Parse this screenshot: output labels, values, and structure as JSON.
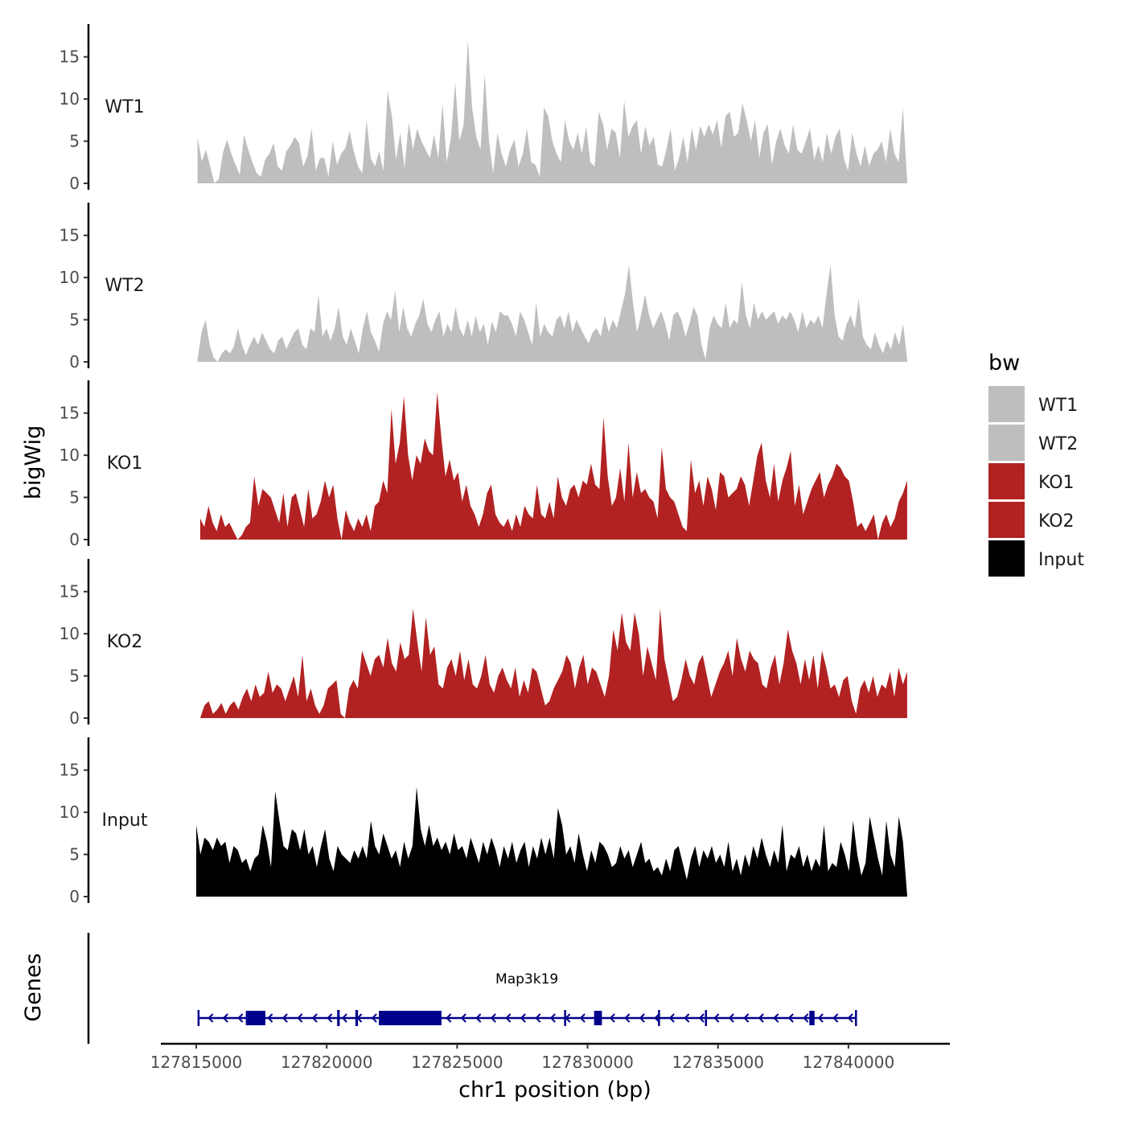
{
  "chart_data": {
    "type": "area",
    "region": "chr1",
    "xlim": [
      127815000,
      127842500
    ],
    "x_ticks": [
      127815000,
      127820000,
      127825000,
      127830000,
      127835000,
      127840000
    ],
    "x_tick_labels": [
      "127815000",
      "127820000",
      "127825000",
      "127830000",
      "127835000",
      "127840000"
    ],
    "xlabel": "chr1 position (bp)",
    "ylabel": "bigWig",
    "ylim": [
      0,
      18.5
    ],
    "y_ticks": [
      0,
      5,
      10,
      15
    ],
    "y_tick_labels": [
      "0",
      "5",
      "10",
      "15"
    ],
    "legend_title": "bw",
    "tracks": [
      {
        "name": "WT1",
        "color": "#bebebe",
        "start": 127815050,
        "end": 127842250,
        "values": [
          5.5,
          2.6,
          4.0,
          2.0,
          0.0,
          0.5,
          3.6,
          5.2,
          3.5,
          2.2,
          1.0,
          5.8,
          4.0,
          2.5,
          1.2,
          0.8,
          2.8,
          3.5,
          4.8,
          2.0,
          1.5,
          3.8,
          4.5,
          5.5,
          4.8,
          2.0,
          3.2,
          6.5,
          1.5,
          3.0,
          3.0,
          0.8,
          5.0,
          2.2,
          3.5,
          4.2,
          6.2,
          3.8,
          2.0,
          1.2,
          7.5,
          3.0,
          2.0,
          3.8,
          1.5,
          11.0,
          8.0,
          2.8,
          6.0,
          1.8,
          7.2,
          4.0,
          6.5,
          5.0,
          4.0,
          3.0,
          5.8,
          3.0,
          9.5,
          2.5,
          5.5,
          12.0,
          5.0,
          7.0,
          17.0,
          9.0,
          5.5,
          4.0,
          13.0,
          5.0,
          1.2,
          6.0,
          3.5,
          2.0,
          4.0,
          5.2,
          2.0,
          3.5,
          6.5,
          2.5,
          2.2,
          0.8,
          9.0,
          8.0,
          5.0,
          3.5,
          2.5,
          7.5,
          5.0,
          4.0,
          6.0,
          3.5,
          6.8,
          2.5,
          2.0,
          8.5,
          7.0,
          4.0,
          6.5,
          6.0,
          3.0,
          9.8,
          5.5,
          6.8,
          7.5,
          3.5,
          6.8,
          4.5,
          5.5,
          2.2,
          2.0,
          4.0,
          6.5,
          1.5,
          3.0,
          5.5,
          2.5,
          6.5,
          4.0,
          6.8,
          5.5,
          7.0,
          5.8,
          7.5,
          4.2,
          8.0,
          8.5,
          5.5,
          6.0,
          9.5,
          7.5,
          5.0,
          7.5,
          3.0,
          6.0,
          7.0,
          2.2,
          5.0,
          6.5,
          4.5,
          3.5,
          7.0,
          4.0,
          3.5,
          5.0,
          6.5,
          2.8,
          4.5,
          2.5,
          6.0,
          3.5,
          5.5,
          6.5,
          3.0,
          1.5,
          6.0,
          3.5,
          2.0,
          4.5,
          2.0,
          3.5,
          4.0,
          5.0,
          2.5,
          6.5,
          3.5,
          2.5,
          9.0,
          0.2
        ]
      },
      {
        "name": "WT2",
        "color": "#bebebe",
        "start": 127815050,
        "end": 127842250,
        "values": [
          0.3,
          3.5,
          5.0,
          2.0,
          0.5,
          0.0,
          1.0,
          1.5,
          1.0,
          1.8,
          4.0,
          2.0,
          0.8,
          2.0,
          3.0,
          2.0,
          3.5,
          2.5,
          1.5,
          1.0,
          2.5,
          3.0,
          1.5,
          2.5,
          3.5,
          4.0,
          2.0,
          1.5,
          4.0,
          3.5,
          8.0,
          3.0,
          4.0,
          2.5,
          4.0,
          6.5,
          3.0,
          2.0,
          4.0,
          2.5,
          1.0,
          4.0,
          6.0,
          3.5,
          2.5,
          1.2,
          4.5,
          6.0,
          5.0,
          8.5,
          3.5,
          6.5,
          4.0,
          3.0,
          4.5,
          5.5,
          7.5,
          4.5,
          3.5,
          5.0,
          6.0,
          3.0,
          4.5,
          3.5,
          6.5,
          4.0,
          3.0,
          5.0,
          3.0,
          5.5,
          3.5,
          4.5,
          2.0,
          4.8,
          3.5,
          6.0,
          5.5,
          5.5,
          4.5,
          3.0,
          6.0,
          5.0,
          3.5,
          2.0,
          7.0,
          3.0,
          4.5,
          3.5,
          3.0,
          5.0,
          5.5,
          4.0,
          6.0,
          3.5,
          5.0,
          4.0,
          3.0,
          2.2,
          3.5,
          4.0,
          3.0,
          5.5,
          3.5,
          5.0,
          4.0,
          6.0,
          8.0,
          11.5,
          7.0,
          3.5,
          5.5,
          8.0,
          5.5,
          4.0,
          5.0,
          6.0,
          4.5,
          2.5,
          5.5,
          6.0,
          5.0,
          3.0,
          4.5,
          6.5,
          5.5,
          2.0,
          0.3,
          4.0,
          5.5,
          4.5,
          4.0,
          7.0,
          4.0,
          5.0,
          4.5,
          9.5,
          5.5,
          4.0,
          7.0,
          5.0,
          6.0,
          5.0,
          5.5,
          6.0,
          4.5,
          5.5,
          5.0,
          6.0,
          5.0,
          3.5,
          6.0,
          4.0,
          5.0,
          4.5,
          5.5,
          4.0,
          8.0,
          11.5,
          5.5,
          3.0,
          2.5,
          4.5,
          5.5,
          4.0,
          7.5,
          3.0,
          2.0,
          1.5,
          3.5,
          2.0,
          1.0,
          2.5,
          1.5,
          3.5,
          2.0,
          4.5,
          0.3
        ]
      },
      {
        "name": "KO1",
        "color": "#b22222",
        "start": 127815150,
        "end": 127842250,
        "values": [
          2.5,
          1.5,
          4.0,
          2.0,
          1.0,
          3.0,
          1.5,
          2.0,
          1.0,
          0.0,
          0.5,
          1.5,
          2.0,
          7.5,
          4.0,
          6.0,
          5.5,
          5.0,
          3.5,
          2.0,
          5.5,
          1.5,
          5.0,
          5.5,
          3.5,
          1.5,
          6.0,
          2.5,
          3.0,
          4.5,
          7.0,
          5.0,
          6.5,
          2.5,
          0.0,
          3.5,
          2.0,
          1.0,
          2.5,
          1.5,
          3.0,
          1.0,
          4.0,
          4.5,
          7.0,
          5.5,
          15.5,
          9.0,
          11.5,
          17.0,
          10.0,
          7.0,
          10.0,
          9.0,
          12.0,
          10.5,
          10.0,
          17.5,
          12.0,
          7.5,
          9.5,
          7.0,
          8.0,
          4.5,
          6.5,
          4.0,
          3.0,
          1.5,
          3.0,
          5.5,
          6.5,
          3.0,
          2.0,
          1.5,
          2.5,
          1.0,
          3.0,
          1.5,
          4.0,
          3.0,
          2.5,
          6.5,
          3.0,
          2.5,
          4.5,
          2.5,
          7.5,
          5.0,
          4.0,
          6.0,
          6.5,
          5.0,
          7.0,
          6.5,
          9.0,
          6.5,
          6.0,
          14.5,
          7.5,
          4.0,
          5.0,
          8.5,
          4.5,
          11.5,
          5.0,
          8.0,
          5.5,
          6.0,
          5.0,
          4.5,
          2.5,
          11.0,
          6.0,
          5.0,
          4.5,
          3.0,
          1.5,
          1.0,
          9.5,
          5.5,
          7.0,
          4.0,
          7.5,
          6.0,
          3.5,
          8.0,
          7.5,
          5.0,
          5.5,
          6.0,
          7.5,
          6.5,
          4.0,
          7.0,
          10.0,
          11.5,
          7.0,
          5.0,
          9.0,
          4.5,
          7.0,
          8.5,
          10.5,
          4.0,
          6.5,
          3.0,
          4.5,
          6.0,
          7.0,
          8.0,
          5.0,
          6.5,
          7.5,
          9.0,
          8.5,
          7.5,
          7.0,
          4.5,
          1.5,
          2.0,
          1.0,
          2.0,
          3.0,
          0.0,
          2.0,
          3.0,
          1.5,
          2.5,
          4.5,
          5.5,
          7.0
        ]
      },
      {
        "name": "KO2",
        "color": "#b22222",
        "start": 127815150,
        "end": 127842250,
        "values": [
          0.0,
          1.5,
          2.0,
          0.5,
          1.0,
          1.8,
          0.5,
          1.5,
          2.0,
          1.0,
          2.5,
          3.5,
          2.0,
          4.0,
          2.5,
          3.0,
          5.5,
          3.0,
          4.0,
          3.5,
          2.0,
          3.5,
          5.0,
          2.5,
          7.5,
          2.0,
          3.5,
          1.5,
          0.5,
          1.5,
          3.5,
          4.0,
          4.5,
          0.5,
          0.0,
          3.5,
          4.5,
          3.5,
          8.0,
          6.5,
          5.0,
          7.0,
          7.5,
          6.0,
          9.5,
          6.5,
          5.5,
          9.0,
          7.0,
          7.5,
          13.0,
          9.0,
          5.5,
          12.0,
          7.5,
          8.5,
          4.0,
          3.5,
          6.0,
          7.0,
          5.0,
          8.0,
          4.5,
          7.0,
          4.0,
          3.5,
          5.0,
          7.5,
          4.0,
          3.0,
          5.0,
          6.0,
          4.5,
          3.5,
          6.0,
          2.5,
          4.5,
          3.0,
          6.0,
          5.5,
          3.5,
          1.5,
          2.0,
          3.5,
          4.5,
          5.5,
          7.5,
          6.5,
          3.5,
          6.0,
          7.5,
          4.0,
          6.0,
          5.5,
          4.0,
          2.5,
          5.0,
          10.5,
          8.0,
          12.5,
          9.0,
          8.0,
          12.5,
          10.0,
          5.0,
          8.5,
          6.5,
          4.5,
          13.0,
          7.0,
          4.5,
          2.0,
          2.5,
          4.5,
          7.0,
          5.0,
          4.0,
          6.5,
          7.5,
          5.0,
          2.5,
          4.0,
          5.5,
          6.5,
          8.0,
          5.0,
          9.5,
          7.0,
          5.5,
          8.0,
          7.0,
          6.5,
          4.0,
          3.5,
          6.0,
          7.5,
          4.0,
          6.5,
          10.5,
          8.0,
          6.5,
          4.0,
          7.0,
          4.5,
          7.5,
          3.5,
          8.0,
          6.0,
          3.5,
          4.0,
          2.5,
          4.5,
          5.0,
          2.0,
          0.5,
          3.5,
          4.5,
          3.0,
          5.0,
          2.5,
          4.0,
          3.5,
          5.5,
          2.5,
          6.0,
          4.0,
          5.5
        ]
      },
      {
        "name": "Input",
        "color": "#000000",
        "start": 127815000,
        "end": 127842250,
        "values": [
          8.5,
          5.0,
          7.0,
          6.5,
          5.5,
          7.0,
          6.0,
          6.5,
          4.0,
          6.0,
          5.5,
          4.0,
          4.5,
          3.0,
          4.5,
          5.0,
          8.5,
          6.5,
          3.5,
          12.5,
          9.0,
          6.0,
          5.5,
          8.0,
          7.5,
          5.5,
          8.0,
          5.0,
          6.0,
          3.5,
          6.0,
          8.0,
          4.5,
          3.0,
          6.0,
          5.0,
          4.5,
          4.0,
          5.5,
          4.5,
          6.0,
          4.5,
          9.0,
          6.0,
          5.0,
          7.5,
          6.0,
          4.5,
          5.5,
          3.5,
          6.5,
          4.5,
          6.0,
          13.0,
          8.0,
          6.0,
          8.5,
          6.0,
          7.0,
          5.5,
          6.5,
          5.0,
          7.5,
          5.5,
          6.0,
          4.5,
          7.0,
          5.5,
          4.0,
          6.5,
          5.0,
          7.0,
          5.5,
          3.5,
          6.0,
          4.5,
          6.5,
          4.0,
          5.5,
          6.5,
          3.5,
          6.0,
          4.5,
          7.0,
          5.0,
          7.0,
          4.5,
          10.5,
          8.5,
          5.0,
          6.0,
          4.0,
          7.5,
          5.0,
          3.0,
          5.5,
          4.0,
          6.5,
          6.0,
          5.0,
          3.5,
          4.0,
          6.0,
          4.5,
          5.5,
          3.5,
          5.0,
          6.5,
          4.0,
          4.5,
          3.0,
          3.5,
          2.5,
          4.5,
          3.0,
          5.5,
          6.0,
          4.0,
          2.0,
          4.5,
          6.0,
          3.5,
          5.5,
          4.5,
          6.0,
          4.0,
          5.0,
          3.5,
          6.5,
          3.0,
          4.5,
          2.5,
          5.0,
          3.5,
          6.0,
          4.5,
          7.0,
          5.0,
          3.5,
          5.5,
          4.0,
          8.5,
          3.0,
          5.0,
          4.5,
          6.0,
          3.5,
          5.0,
          3.0,
          4.5,
          3.5,
          8.5,
          3.0,
          4.0,
          3.5,
          6.5,
          5.0,
          3.0,
          9.0,
          5.0,
          2.5,
          4.0,
          9.5,
          7.0,
          4.5,
          2.5,
          9.0,
          5.0,
          3.5,
          9.5,
          6.5,
          0.2
        ]
      }
    ],
    "genes_track_label": "Genes",
    "gene": {
      "name": "Map3k19",
      "start": 127815050,
      "end": 127840300,
      "strand": "-",
      "color": "#00008b",
      "exons": [
        [
          127815050,
          127815110
        ],
        [
          127816900,
          127817650
        ],
        [
          127820400,
          127820500
        ],
        [
          127821100,
          127821200
        ],
        [
          127822000,
          127824400
        ],
        [
          127829100,
          127829160
        ],
        [
          127830250,
          127830550
        ],
        [
          127832700,
          127832760
        ],
        [
          127834500,
          127834560
        ],
        [
          127838500,
          127838700
        ],
        [
          127840250,
          127840300
        ]
      ]
    }
  }
}
